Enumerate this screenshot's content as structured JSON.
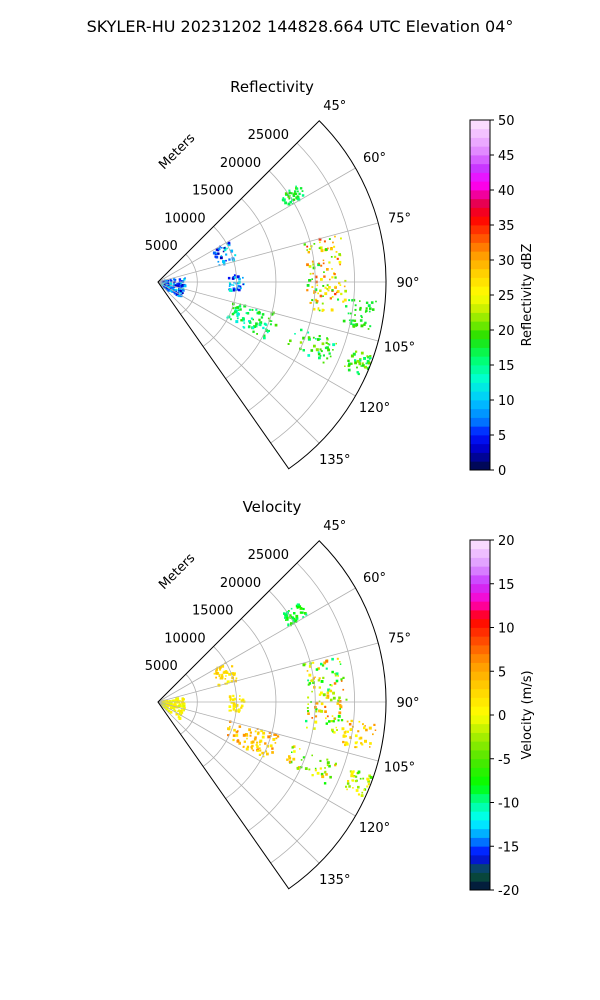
{
  "suptitle": "SKYLER-HU  20231202  144828.664 UTC Elevation 04°",
  "panels": [
    {
      "id": "reflectivity",
      "title": "Reflectivity",
      "range_label": "Meters",
      "colorbar": {
        "label": "Reflectivity dBZ",
        "min": 0,
        "max": 50,
        "ticks": [
          "0",
          "5",
          "10",
          "15",
          "20",
          "25",
          "30",
          "35",
          "40",
          "45",
          "50"
        ]
      }
    },
    {
      "id": "velocity",
      "title": "Velocity",
      "range_label": "Meters",
      "colorbar": {
        "label": "Velocity (m/s)",
        "min": -20,
        "max": 20,
        "ticks": [
          "-20",
          "-15",
          "-10",
          "-5",
          "0",
          "5",
          "10",
          "15",
          "20"
        ]
      }
    }
  ],
  "chart_data": [
    {
      "type": "heatmap",
      "projection": "polar-sector",
      "title": "Reflectivity",
      "theta_range_deg": [
        45,
        145
      ],
      "theta_ticks_deg": [
        45,
        60,
        75,
        90,
        105,
        120,
        135
      ],
      "theta_tick_labels": [
        "45°",
        "60°",
        "75°",
        "90°",
        "105°",
        "120°",
        "135°"
      ],
      "r_range_m": [
        0,
        29000
      ],
      "r_ticks_m": [
        5000,
        10000,
        15000,
        20000,
        25000
      ],
      "r_tick_labels": [
        "5000",
        "10000",
        "15000",
        "20000",
        "25000"
      ],
      "r_axis_label": "Meters",
      "grid": true,
      "colorbar_label": "Reflectivity dBZ",
      "colorbar_range": [
        0,
        50
      ],
      "echo_features": [
        {
          "from_theta": 80,
          "to_theta": 130,
          "r_min": 500,
          "r_max": 3500,
          "value_range": [
            2,
            12
          ]
        },
        {
          "from_theta": 60,
          "to_theta": 75,
          "r_min": 8000,
          "r_max": 10500,
          "value_range": [
            2,
            14
          ]
        },
        {
          "from_theta": 85,
          "to_theta": 97,
          "r_min": 9000,
          "r_max": 11000,
          "value_range": [
            3,
            14
          ]
        },
        {
          "from_theta": 105,
          "to_theta": 118,
          "r_min": 9500,
          "r_max": 16000,
          "value_range": [
            12,
            20
          ]
        },
        {
          "from_theta": 108,
          "to_theta": 116,
          "r_min": 18000,
          "r_max": 24000,
          "value_range": [
            13,
            22
          ]
        },
        {
          "from_theta": 55,
          "to_theta": 60,
          "r_min": 19000,
          "r_max": 22000,
          "value_range": [
            15,
            20
          ]
        },
        {
          "from_theta": 75,
          "to_theta": 100,
          "r_min": 19000,
          "r_max": 24000,
          "value_range": [
            17,
            35
          ]
        },
        {
          "from_theta": 95,
          "to_theta": 103,
          "r_min": 24000,
          "r_max": 28000,
          "value_range": [
            16,
            20
          ]
        },
        {
          "from_theta": 109,
          "to_theta": 115,
          "r_min": 26000,
          "r_max": 29000,
          "value_range": [
            15,
            22
          ]
        }
      ]
    },
    {
      "type": "heatmap",
      "projection": "polar-sector",
      "title": "Velocity",
      "theta_range_deg": [
        45,
        145
      ],
      "theta_ticks_deg": [
        45,
        60,
        75,
        90,
        105,
        120,
        135
      ],
      "theta_tick_labels": [
        "45°",
        "60°",
        "75°",
        "90°",
        "105°",
        "120°",
        "135°"
      ],
      "r_range_m": [
        0,
        29000
      ],
      "r_ticks_m": [
        5000,
        10000,
        15000,
        20000,
        25000
      ],
      "r_tick_labels": [
        "5000",
        "10000",
        "15000",
        "20000",
        "25000"
      ],
      "r_axis_label": "Meters",
      "grid": true,
      "colorbar_label": "Velocity (m/s)",
      "colorbar_range": [
        -20,
        20
      ],
      "echo_features": [
        {
          "from_theta": 80,
          "to_theta": 130,
          "r_min": 500,
          "r_max": 3500,
          "value_range": [
            -1,
            2
          ]
        },
        {
          "from_theta": 60,
          "to_theta": 75,
          "r_min": 8000,
          "r_max": 10500,
          "value_range": [
            0,
            4
          ]
        },
        {
          "from_theta": 85,
          "to_theta": 97,
          "r_min": 9000,
          "r_max": 11000,
          "value_range": [
            0,
            3
          ]
        },
        {
          "from_theta": 105,
          "to_theta": 118,
          "r_min": 9500,
          "r_max": 16000,
          "value_range": [
            1,
            7
          ]
        },
        {
          "from_theta": 108,
          "to_theta": 116,
          "r_min": 18000,
          "r_max": 24000,
          "value_range": [
            -8,
            6
          ]
        },
        {
          "from_theta": 55,
          "to_theta": 60,
          "r_min": 19000,
          "r_max": 22000,
          "value_range": [
            -10,
            -6
          ]
        },
        {
          "from_theta": 75,
          "to_theta": 100,
          "r_min": 19000,
          "r_max": 24000,
          "value_range": [
            -10,
            8
          ]
        },
        {
          "from_theta": 95,
          "to_theta": 103,
          "r_min": 24000,
          "r_max": 28000,
          "value_range": [
            0,
            7
          ]
        },
        {
          "from_theta": 109,
          "to_theta": 115,
          "r_min": 26000,
          "r_max": 29000,
          "value_range": [
            -6,
            2
          ]
        }
      ]
    }
  ]
}
